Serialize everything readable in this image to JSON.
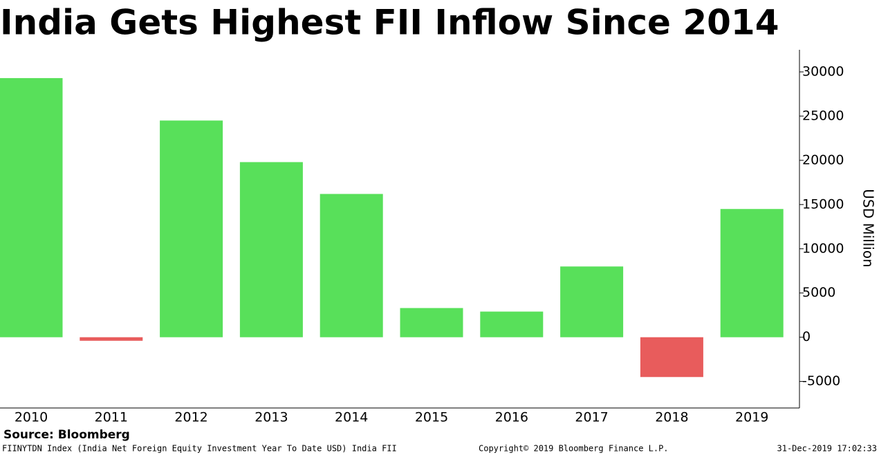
{
  "chart_data": {
    "type": "bar",
    "title": "India Gets Highest FII Inflow Since 2014",
    "y_axis_label": "USD Million",
    "categories": [
      "2010",
      "2011",
      "2012",
      "2013",
      "2014",
      "2015",
      "2016",
      "2017",
      "2018",
      "2019"
    ],
    "values": [
      29300,
      -400,
      24500,
      19800,
      16200,
      3300,
      2900,
      8000,
      -4500,
      14500
    ],
    "colors": [
      "#58e05a",
      "#e85c5c",
      "#58e05a",
      "#58e05a",
      "#58e05a",
      "#58e05a",
      "#58e05a",
      "#58e05a",
      "#e85c5c",
      "#58e05a"
    ],
    "ylim": [
      -8000,
      32500
    ],
    "yticks": [
      -5000,
      0,
      5000,
      10000,
      15000,
      20000,
      25000,
      30000
    ],
    "grid": false
  },
  "footer": {
    "source": "Source: Bloomberg",
    "description": "FIINYTDN Index (India Net Foreign Equity Investment Year To Date USD) India FII",
    "copyright": "Copyright© 2019 Bloomberg Finance L.P.",
    "timestamp": "31-Dec-2019 17:02:33"
  }
}
